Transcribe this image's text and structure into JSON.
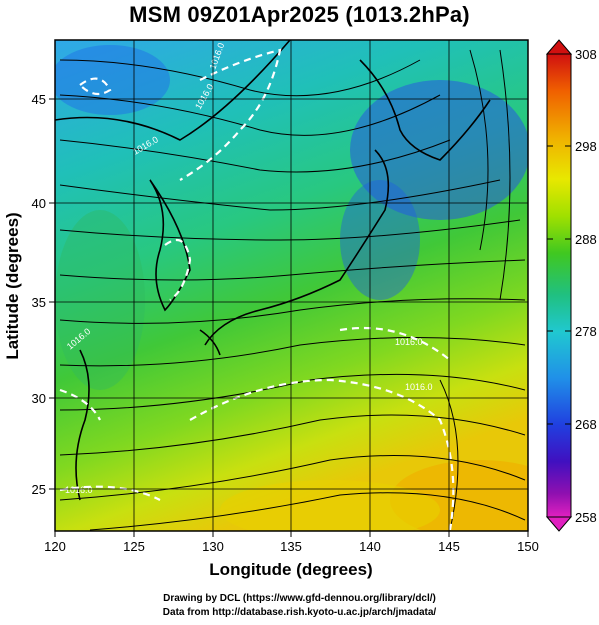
{
  "title": "MSM 09Z01Apr2025 (1013.2hPa)",
  "xlabel": "Longitude (degrees)",
  "ylabel": "Latitude  (degrees)",
  "xticks": [
    "120",
    "125",
    "130",
    "135",
    "140",
    "145",
    "150"
  ],
  "yticks": [
    "25",
    "30",
    "35",
    "40",
    "45"
  ],
  "colorbar": {
    "labels": [
      "308",
      "298",
      "288",
      "278",
      "268",
      "258"
    ],
    "colors": [
      "#d01010",
      "#f06000",
      "#f0b000",
      "#e8e800",
      "#a0e000",
      "#40c820",
      "#20c080",
      "#20c8d0",
      "#2090e8",
      "#2040e0",
      "#4010c0",
      "#9010b0",
      "#e020c0"
    ]
  },
  "contour_labels": [
    "1016.0",
    "1016.0",
    "1016.0",
    "1016.0",
    "1016.0",
    "1016.0",
    "1016.0"
  ],
  "credits": {
    "line1": "Drawing by DCL (https://www.gfd-dennou.org/library/dcl/)",
    "line2": "Data from http://database.rish.kyoto-u.ac.jp/arch/jmadata/"
  },
  "chart_data": {
    "type": "heatmap",
    "title": "MSM 09Z01Apr2025 (1013.2hPa)",
    "xlabel": "Longitude (degrees)",
    "ylabel": "Latitude  (degrees)",
    "xlim": [
      120,
      150
    ],
    "ylim": [
      22.4,
      47.6
    ],
    "colorbar_range": [
      258,
      308
    ],
    "colorbar_ticks": [
      308,
      298,
      288,
      278,
      268,
      258
    ],
    "grid": true,
    "contour_value": 1016.0
  }
}
